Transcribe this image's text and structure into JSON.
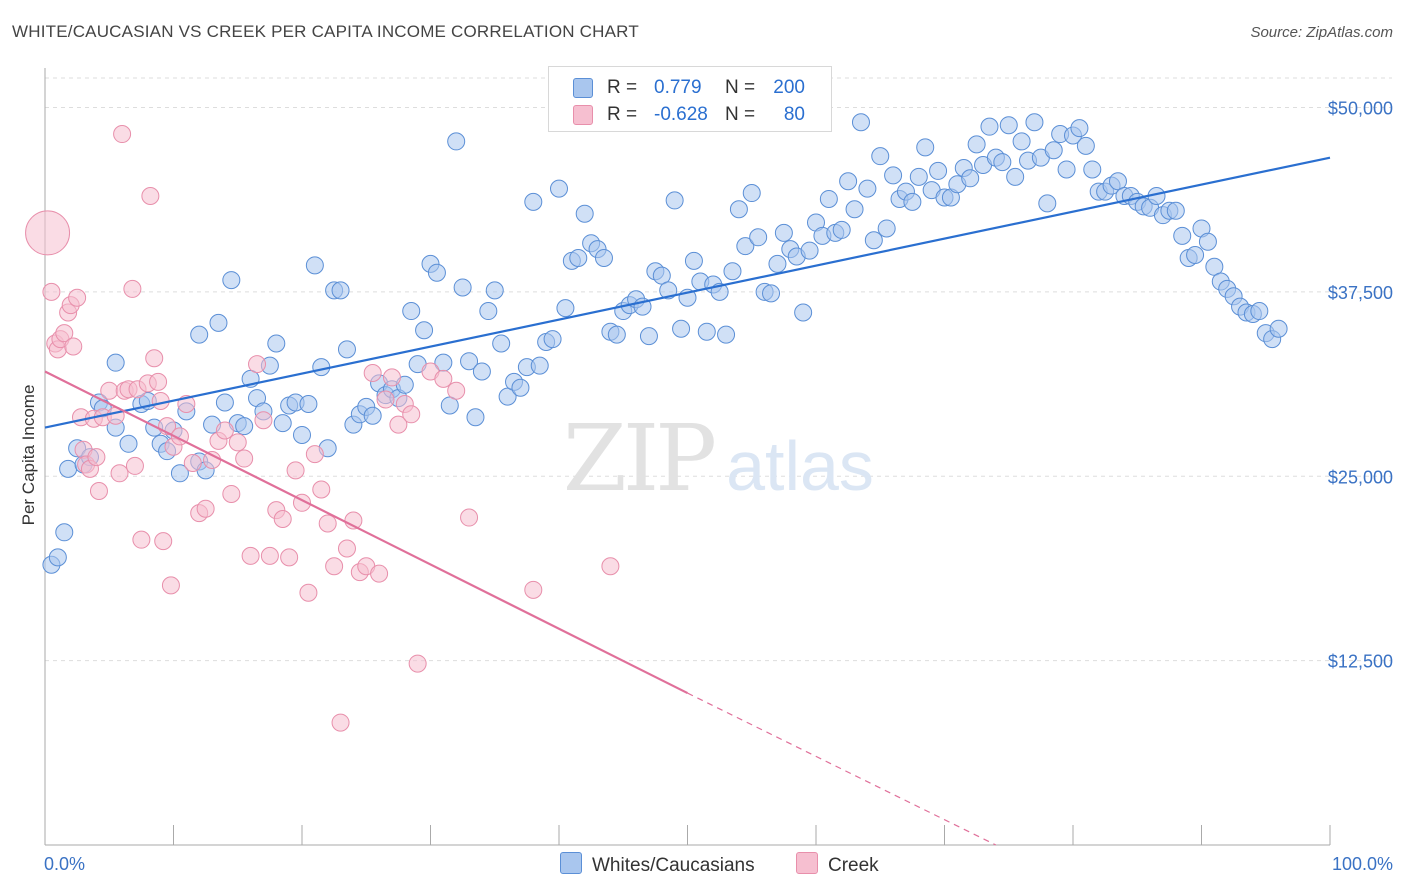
{
  "title": "WHITE/CAUCASIAN VS CREEK PER CAPITA INCOME CORRELATION CHART",
  "source": "Source: ZipAtlas.com",
  "watermark": {
    "zip": "ZIP",
    "atlas": "atlas"
  },
  "colors": {
    "blue_fill": "#a9c6ee",
    "blue_stroke": "#5b8fd6",
    "blue_line": "#2a6fd0",
    "pink_fill": "#f6bfd0",
    "pink_stroke": "#e88fab",
    "pink_line": "#e0709a",
    "tick_text": "#3a72c4",
    "grid": "#dddddd"
  },
  "legend": {
    "rows": [
      {
        "r_label": "R =",
        "r_value": "0.779",
        "n_label": "N =",
        "n_value": "200"
      },
      {
        "r_label": "R =",
        "r_value": "-0.628",
        "n_label": "N =",
        "n_value": "80"
      }
    ]
  },
  "bottom_legend": {
    "series1": "Whites/Caucasians",
    "series2": "Creek"
  },
  "chart_data": {
    "type": "scatter",
    "title": "WHITE/CAUCASIAN VS CREEK PER CAPITA INCOME CORRELATION CHART",
    "xlabel": "",
    "ylabel": "Per Capita Income",
    "xlim": [
      0,
      100
    ],
    "ylim": [
      0,
      52000
    ],
    "x_tick_labels": [
      "0.0%",
      "100.0%"
    ],
    "y_ticks": [
      12500,
      25000,
      37500,
      50000
    ],
    "y_tick_labels": [
      "$12,500",
      "$25,000",
      "$37,500",
      "$50,000"
    ],
    "grid": "horizontal dashed",
    "series": [
      {
        "name": "Whites/Caucasians",
        "r": 0.779,
        "n": 200,
        "trend": {
          "x": [
            0,
            100
          ],
          "y": [
            28300,
            46600
          ]
        },
        "points": [
          [
            0.5,
            19000
          ],
          [
            1,
            19500
          ],
          [
            1.5,
            21200
          ],
          [
            1.8,
            25500
          ],
          [
            2.5,
            26900
          ],
          [
            3,
            25800
          ],
          [
            3.5,
            26300
          ],
          [
            4.2,
            30000
          ],
          [
            4.5,
            29600
          ],
          [
            5.5,
            28300
          ],
          [
            5.5,
            32700
          ],
          [
            6.5,
            27200
          ],
          [
            7.5,
            29900
          ],
          [
            8,
            30100
          ],
          [
            8.5,
            28300
          ],
          [
            9,
            27200
          ],
          [
            9.5,
            26700
          ],
          [
            10,
            28100
          ],
          [
            10.5,
            25200
          ],
          [
            11,
            29400
          ],
          [
            12,
            26000
          ],
          [
            12,
            34600
          ],
          [
            12.5,
            25400
          ],
          [
            13,
            28500
          ],
          [
            13.5,
            35400
          ],
          [
            14,
            30000
          ],
          [
            14.5,
            38300
          ],
          [
            15,
            28600
          ],
          [
            15.5,
            28400
          ],
          [
            16,
            31600
          ],
          [
            16.5,
            30300
          ],
          [
            17,
            29400
          ],
          [
            17.5,
            32500
          ],
          [
            18,
            34000
          ],
          [
            18.5,
            28600
          ],
          [
            19,
            29800
          ],
          [
            19.5,
            30000
          ],
          [
            20,
            27800
          ],
          [
            20.5,
            29900
          ],
          [
            21,
            39300
          ],
          [
            21.5,
            32400
          ],
          [
            22,
            26900
          ],
          [
            22.5,
            37600
          ],
          [
            23,
            37600
          ],
          [
            23.5,
            33600
          ],
          [
            24,
            28500
          ],
          [
            24.5,
            29200
          ],
          [
            25,
            29700
          ],
          [
            25.5,
            29100
          ],
          [
            26,
            31300
          ],
          [
            26.5,
            30500
          ],
          [
            27,
            30900
          ],
          [
            27.5,
            30300
          ],
          [
            28,
            31200
          ],
          [
            28.5,
            36200
          ],
          [
            29,
            32600
          ],
          [
            29.5,
            34900
          ],
          [
            30,
            39400
          ],
          [
            30.5,
            38800
          ],
          [
            31,
            32700
          ],
          [
            31.5,
            29800
          ],
          [
            32,
            47700
          ],
          [
            32.5,
            37800
          ],
          [
            33,
            32800
          ],
          [
            33.5,
            29000
          ],
          [
            34,
            32100
          ],
          [
            34.5,
            36200
          ],
          [
            35,
            37600
          ],
          [
            35.5,
            34000
          ],
          [
            36,
            30400
          ],
          [
            36.5,
            31400
          ],
          [
            37,
            31000
          ],
          [
            37.5,
            32400
          ],
          [
            38,
            43600
          ],
          [
            38.5,
            32500
          ],
          [
            39,
            34100
          ],
          [
            39.5,
            34300
          ],
          [
            40,
            44500
          ],
          [
            40.5,
            36400
          ],
          [
            41,
            39600
          ],
          [
            41.5,
            39800
          ],
          [
            42,
            42800
          ],
          [
            42.5,
            40800
          ],
          [
            43,
            40400
          ],
          [
            43.5,
            39800
          ],
          [
            44,
            34800
          ],
          [
            44.5,
            34600
          ],
          [
            45,
            36200
          ],
          [
            45.5,
            36600
          ],
          [
            46,
            37000
          ],
          [
            46.5,
            36500
          ],
          [
            47,
            34500
          ],
          [
            47.5,
            38900
          ],
          [
            48,
            38600
          ],
          [
            48.5,
            37600
          ],
          [
            49,
            43700
          ],
          [
            49.5,
            35000
          ],
          [
            50,
            37100
          ],
          [
            50.5,
            39600
          ],
          [
            51,
            38200
          ],
          [
            51.5,
            34800
          ],
          [
            52,
            38000
          ],
          [
            52.5,
            37500
          ],
          [
            53,
            34600
          ],
          [
            53.5,
            38900
          ],
          [
            54,
            43100
          ],
          [
            54.5,
            40600
          ],
          [
            55,
            44200
          ],
          [
            55.5,
            41200
          ],
          [
            56,
            37500
          ],
          [
            56.5,
            37400
          ],
          [
            57,
            39400
          ],
          [
            57.5,
            41500
          ],
          [
            58,
            40400
          ],
          [
            58.5,
            39900
          ],
          [
            59,
            36100
          ],
          [
            59.5,
            40300
          ],
          [
            60,
            42200
          ],
          [
            60.5,
            41300
          ],
          [
            61,
            43800
          ],
          [
            61.5,
            41500
          ],
          [
            62,
            41700
          ],
          [
            62.5,
            45000
          ],
          [
            63,
            43100
          ],
          [
            63.5,
            49000
          ],
          [
            64,
            44500
          ],
          [
            64.5,
            41000
          ],
          [
            65,
            46700
          ],
          [
            65.5,
            41800
          ],
          [
            66,
            45400
          ],
          [
            66.5,
            43800
          ],
          [
            67,
            44300
          ],
          [
            67.5,
            43600
          ],
          [
            68,
            45300
          ],
          [
            68.5,
            47300
          ],
          [
            69,
            44400
          ],
          [
            69.5,
            45700
          ],
          [
            70,
            43900
          ],
          [
            70.5,
            43900
          ],
          [
            71,
            44800
          ],
          [
            71.5,
            45900
          ],
          [
            72,
            45200
          ],
          [
            72.5,
            47500
          ],
          [
            73,
            46100
          ],
          [
            73.5,
            48700
          ],
          [
            74,
            46600
          ],
          [
            74.5,
            46300
          ],
          [
            75,
            48800
          ],
          [
            75.5,
            45300
          ],
          [
            76,
            47700
          ],
          [
            76.5,
            46400
          ],
          [
            77,
            49000
          ],
          [
            77.5,
            46600
          ],
          [
            78,
            43500
          ],
          [
            78.5,
            47100
          ],
          [
            79,
            48200
          ],
          [
            79.5,
            45800
          ],
          [
            80,
            48100
          ],
          [
            80.5,
            48600
          ],
          [
            81,
            47400
          ],
          [
            81.5,
            45800
          ],
          [
            82,
            44300
          ],
          [
            82.5,
            44300
          ],
          [
            83,
            44700
          ],
          [
            83.5,
            45000
          ],
          [
            84,
            44000
          ],
          [
            84.5,
            44000
          ],
          [
            85,
            43600
          ],
          [
            85.5,
            43300
          ],
          [
            86,
            43200
          ],
          [
            86.5,
            44000
          ],
          [
            87,
            42700
          ],
          [
            87.5,
            43000
          ],
          [
            88,
            43000
          ],
          [
            88.5,
            41300
          ],
          [
            89,
            39800
          ],
          [
            89.5,
            40000
          ],
          [
            90,
            41800
          ],
          [
            90.5,
            40900
          ],
          [
            91,
            39200
          ],
          [
            91.5,
            38200
          ],
          [
            92,
            37700
          ],
          [
            92.5,
            37200
          ],
          [
            93,
            36500
          ],
          [
            93.5,
            36100
          ],
          [
            94,
            36000
          ],
          [
            94.5,
            36200
          ],
          [
            95,
            34700
          ],
          [
            95.5,
            34300
          ],
          [
            96,
            35000
          ]
        ]
      },
      {
        "name": "Creek",
        "r": -0.628,
        "n": 80,
        "trend": {
          "x": [
            0,
            50
          ],
          "y": [
            32100,
            10300
          ]
        },
        "trend_dashed": {
          "x": [
            50,
            74
          ],
          "y": [
            10300,
            0
          ]
        },
        "points": [
          [
            0.2,
            41500
          ],
          [
            0.5,
            37500
          ],
          [
            0.8,
            34000
          ],
          [
            1,
            33600
          ],
          [
            1.2,
            34300
          ],
          [
            1.5,
            34700
          ],
          [
            1.8,
            36100
          ],
          [
            2,
            36600
          ],
          [
            2.2,
            33800
          ],
          [
            2.5,
            37100
          ],
          [
            2.8,
            29000
          ],
          [
            3,
            26800
          ],
          [
            3.2,
            25800
          ],
          [
            3.5,
            25500
          ],
          [
            3.8,
            28900
          ],
          [
            4,
            26300
          ],
          [
            4.2,
            24000
          ],
          [
            4.5,
            29000
          ],
          [
            5,
            30800
          ],
          [
            5.5,
            29100
          ],
          [
            5.8,
            25200
          ],
          [
            6,
            48200
          ],
          [
            6.2,
            30800
          ],
          [
            6.5,
            30900
          ],
          [
            6.8,
            37700
          ],
          [
            7,
            25700
          ],
          [
            7.2,
            30900
          ],
          [
            7.5,
            20700
          ],
          [
            8,
            31300
          ],
          [
            8.2,
            44000
          ],
          [
            8.5,
            33000
          ],
          [
            8.8,
            31400
          ],
          [
            9,
            30100
          ],
          [
            9.2,
            20600
          ],
          [
            9.5,
            28400
          ],
          [
            9.8,
            17600
          ],
          [
            10,
            27000
          ],
          [
            10.5,
            27700
          ],
          [
            11,
            29900
          ],
          [
            11.5,
            25900
          ],
          [
            12,
            22500
          ],
          [
            12.5,
            22800
          ],
          [
            13,
            26100
          ],
          [
            13.5,
            27400
          ],
          [
            14,
            28100
          ],
          [
            14.5,
            23800
          ],
          [
            15,
            27300
          ],
          [
            15.5,
            26200
          ],
          [
            16,
            19600
          ],
          [
            16.5,
            32600
          ],
          [
            17,
            28800
          ],
          [
            17.5,
            19600
          ],
          [
            18,
            22700
          ],
          [
            18.5,
            22100
          ],
          [
            19,
            19500
          ],
          [
            19.5,
            25400
          ],
          [
            20,
            23200
          ],
          [
            20.5,
            17100
          ],
          [
            21,
            26500
          ],
          [
            21.5,
            24100
          ],
          [
            22,
            21800
          ],
          [
            22.5,
            18900
          ],
          [
            23,
            8300
          ],
          [
            23.5,
            20100
          ],
          [
            24,
            22000
          ],
          [
            24.5,
            18500
          ],
          [
            25,
            18900
          ],
          [
            25.5,
            32000
          ],
          [
            26,
            18400
          ],
          [
            26.5,
            30200
          ],
          [
            27,
            31700
          ],
          [
            27.5,
            28500
          ],
          [
            28,
            29900
          ],
          [
            28.5,
            29200
          ],
          [
            29,
            12300
          ],
          [
            30,
            32100
          ],
          [
            31,
            31600
          ],
          [
            32,
            30800
          ],
          [
            33,
            22200
          ],
          [
            38,
            17300
          ],
          [
            44,
            18900
          ]
        ]
      }
    ]
  }
}
